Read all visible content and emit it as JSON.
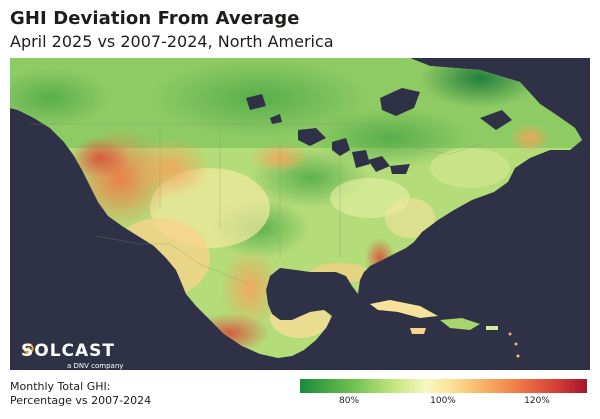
{
  "title": "GHI Deviation From Average",
  "subtitle": "April 2025 vs 2007-2024, North America",
  "logo": {
    "wordmark": "SOLCAST",
    "tagline": "a DNV company"
  },
  "legend": {
    "caption_line1": "Monthly Total GHI:",
    "caption_line2": "Percentage vs 2007-2024",
    "ticks": [
      "80%",
      "100%",
      "120%"
    ],
    "colors": {
      "low": "#1a8a3b",
      "neutral": "#f6f7c0",
      "high": "#a4162b"
    }
  },
  "colors": {
    "ocean": "#2f3147"
  }
}
